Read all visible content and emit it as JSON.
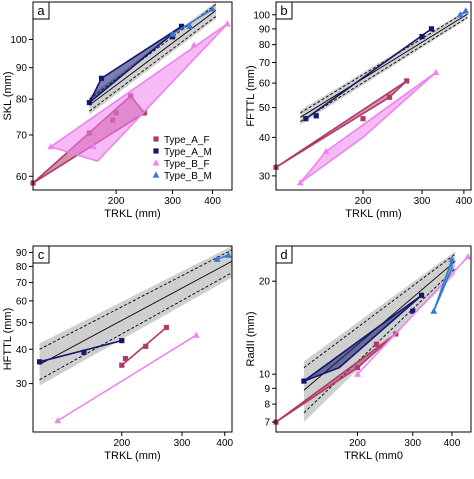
{
  "legend": {
    "entries": [
      {
        "label": "Type_A_F",
        "color": "#b03a6a",
        "marker": "square"
      },
      {
        "label": "Type_A_M",
        "color": "#13186b",
        "marker": "square"
      },
      {
        "label": "Type_B_F",
        "color": "#ee82ee",
        "marker": "triangle"
      },
      {
        "label": "Type_B_M",
        "color": "#3a78d6",
        "marker": "triangle"
      }
    ]
  },
  "chart_data": [
    {
      "panel": "a",
      "type": "scatter",
      "xlabel": "TRKL (mm)",
      "ylabel": "SKL (mm)",
      "log_axes": true,
      "xlim": [
        110,
        460
      ],
      "ylim": [
        57,
        115
      ],
      "xticks": [
        200,
        300,
        400
      ],
      "yticks": [
        60,
        70,
        80,
        90,
        100
      ],
      "band": {
        "x": [
          165,
          410
        ],
        "lower": [
          76.5,
          109
        ],
        "upper": [
          80,
          114
        ],
        "ci_lower": [
          75.5,
          108
        ],
        "ci_upper": [
          81,
          115
        ]
      },
      "series": [
        {
          "name": "Type_A_F",
          "points": [
            [
              110,
              58.5
            ],
            [
              195,
              74
            ],
            [
              222,
              81
            ],
            [
              245,
              76
            ],
            [
              200,
              76
            ],
            [
              165,
              70.5
            ]
          ],
          "hull": [
            [
              110,
              58.5
            ],
            [
              222,
              81
            ],
            [
              245,
              76
            ]
          ]
        },
        {
          "name": "Type_A_M",
          "points": [
            [
              165,
              79
            ],
            [
              180,
              86.5
            ],
            [
              300,
              101
            ],
            [
              320,
              105
            ]
          ],
          "hull": [
            [
              165,
              79
            ],
            [
              180,
              86.5
            ],
            [
              320,
              105
            ]
          ]
        },
        {
          "name": "Type_B_F",
          "points": [
            [
              125,
              67
            ],
            [
              170,
              67
            ],
            [
              350,
              98
            ],
            [
              445,
              106
            ]
          ],
          "hull": [
            [
              125,
              67
            ],
            [
              175,
              63.5
            ],
            [
              445,
              106
            ]
          ]
        },
        {
          "name": "Type_B_M",
          "points": [
            [
              300,
              102
            ],
            [
              340,
              105
            ],
            [
              400,
              112
            ]
          ],
          "hull": [
            [
              300,
              102
            ],
            [
              400,
              112
            ]
          ]
        }
      ]
    },
    {
      "panel": "b",
      "type": "scatter",
      "xlabel": "TRKL (mm)",
      "ylabel": "FFTTL (mm)",
      "log_axes": true,
      "xlim": [
        110,
        420
      ],
      "ylim": [
        27,
        110
      ],
      "xticks": [
        200,
        300,
        400
      ],
      "yticks": [
        30,
        40,
        50,
        60,
        70,
        80,
        90,
        100
      ],
      "band": {
        "x": [
          130,
          410
        ],
        "lower": [
          45,
          98
        ],
        "upper": [
          48,
          103
        ],
        "ci_lower": [
          44,
          97
        ],
        "ci_upper": [
          49,
          104
        ]
      },
      "series": [
        {
          "name": "Type_A_F",
          "points": [
            [
              110,
              32
            ],
            [
              200,
              46
            ],
            [
              240,
              54
            ],
            [
              270,
              61
            ]
          ],
          "hull": [
            [
              110,
              32
            ],
            [
              240,
              54
            ],
            [
              270,
              61
            ]
          ]
        },
        {
          "name": "Type_A_M",
          "points": [
            [
              135,
              46
            ],
            [
              145,
              47
            ],
            [
              300,
              85
            ],
            [
              320,
              90
            ]
          ],
          "hull": [
            [
              135,
              46
            ],
            [
              320,
              90
            ]
          ]
        },
        {
          "name": "Type_B_F",
          "points": [
            [
              130,
              28.5
            ],
            [
              155,
              36
            ],
            [
              330,
              65
            ]
          ],
          "hull": [
            [
              130,
              28.5
            ],
            [
              155,
              36
            ],
            [
              330,
              65
            ],
            [
              200,
              40
            ]
          ]
        },
        {
          "name": "Type_B_M",
          "points": [
            [
              390,
              100
            ],
            [
              405,
              103
            ]
          ],
          "hull": [
            [
              390,
              100
            ],
            [
              405,
              103
            ]
          ]
        }
      ]
    },
    {
      "panel": "c",
      "type": "scatter",
      "xlabel": "TRKL (mm)",
      "ylabel": "HFTTL (mm)",
      "log_axes": true,
      "xlim": [
        110,
        420
      ],
      "ylim": [
        20,
        95
      ],
      "xticks": [
        200,
        300,
        400
      ],
      "yticks": [
        30,
        40,
        50,
        60,
        70,
        80,
        90
      ],
      "band": {
        "x": [
          115,
          420
        ],
        "lower": [
          31,
          76
        ],
        "upper": [
          40,
          92
        ],
        "ci_lower": [
          29.5,
          73
        ],
        "ci_upper": [
          42,
          95
        ]
      },
      "series": [
        {
          "name": "Type_A_F",
          "points": [
            [
              200,
              35
            ],
            [
              205,
              37
            ],
            [
              235,
              41
            ],
            [
              270,
              48
            ]
          ],
          "hull": [
            [
              200,
              35
            ],
            [
              270,
              48
            ]
          ]
        },
        {
          "name": "Type_A_M",
          "points": [
            [
              115,
              36
            ],
            [
              155,
              39
            ],
            [
              200,
              43
            ]
          ],
          "hull": [
            [
              115,
              36
            ],
            [
              200,
              43
            ]
          ]
        },
        {
          "name": "Type_B_F",
          "points": [
            [
              130,
              22
            ],
            [
              330,
              45
            ]
          ],
          "hull": [
            [
              130,
              22
            ],
            [
              330,
              45
            ]
          ]
        },
        {
          "name": "Type_B_M",
          "points": [
            [
              380,
              85
            ],
            [
              410,
              88
            ]
          ],
          "hull": [
            [
              380,
              85
            ],
            [
              410,
              88
            ]
          ]
        }
      ]
    },
    {
      "panel": "d",
      "type": "scatter",
      "xlabel": "TRKL (mm0",
      "ylabel": "RadII (mm)",
      "log_axes": true,
      "xlim": [
        110,
        460
      ],
      "ylim": [
        6.5,
        26
      ],
      "xticks": [
        200,
        300,
        400
      ],
      "yticks": [
        7,
        8,
        9,
        10,
        20
      ],
      "band": {
        "x": [
          135,
          410
        ],
        "lower": [
          7.5,
          22
        ],
        "upper": [
          10.5,
          24.5
        ],
        "ci_lower": [
          7,
          21
        ],
        "ci_upper": [
          11,
          25
        ]
      },
      "series": [
        {
          "name": "Type_A_F",
          "points": [
            [
              110,
              7
            ],
            [
              200,
              10.5
            ],
            [
              230,
              12.5
            ],
            [
              265,
              13.5
            ]
          ],
          "hull": [
            [
              110,
              7
            ],
            [
              200,
              10.5
            ],
            [
              265,
              13.5
            ]
          ]
        },
        {
          "name": "Type_A_M",
          "points": [
            [
              135,
              9.5
            ],
            [
              300,
              16
            ],
            [
              320,
              18
            ]
          ],
          "hull": [
            [
              135,
              9.5
            ],
            [
              320,
              18
            ],
            [
              175,
              10.5
            ]
          ]
        },
        {
          "name": "Type_B_F",
          "points": [
            [
              200,
              10
            ],
            [
              450,
              24
            ]
          ],
          "hull": [
            [
              200,
              10
            ],
            [
              450,
              24
            ]
          ]
        },
        {
          "name": "Type_B_M",
          "points": [
            [
              350,
              16
            ],
            [
              400,
              23.5
            ]
          ],
          "hull": [
            [
              350,
              16
            ],
            [
              400,
              22
            ],
            [
              400,
              23.5
            ]
          ]
        }
      ]
    }
  ]
}
